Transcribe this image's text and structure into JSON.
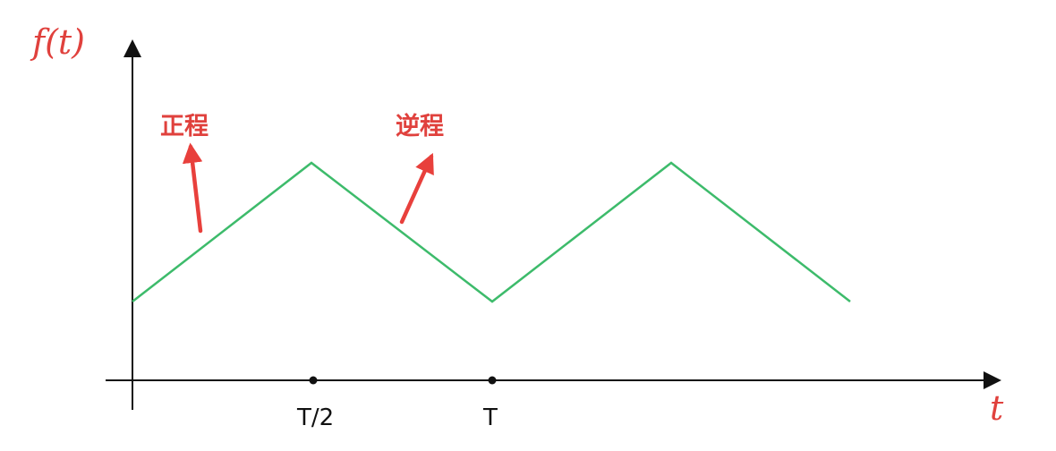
{
  "axes": {
    "y_label": "f(t)",
    "x_label": "t",
    "x_ticks": [
      "T/2",
      "T"
    ]
  },
  "annotations": {
    "forward": "正程",
    "reverse": "逆程"
  },
  "colors": {
    "waveform": "#3dbb6b",
    "axis": "#111111",
    "label": "#e0413d",
    "arrow": "#e8403c"
  },
  "waveform": {
    "shape": "triangle wave",
    "points_in_periods": [
      {
        "t": 0,
        "level": "low"
      },
      {
        "t": 0.5,
        "level": "high"
      },
      {
        "t": 1.0,
        "level": "low"
      },
      {
        "t": 1.5,
        "level": "high"
      },
      {
        "t": 2.0,
        "level": "low"
      }
    ]
  }
}
